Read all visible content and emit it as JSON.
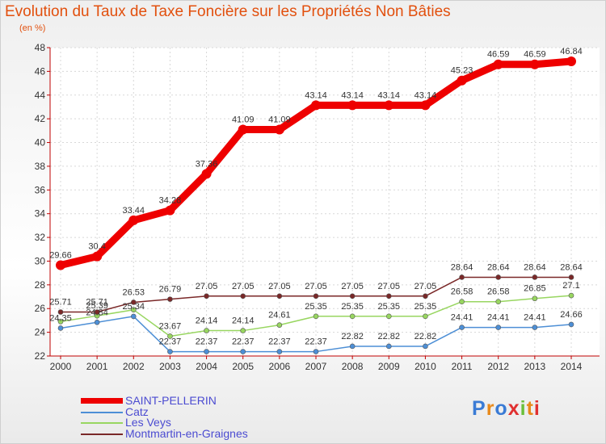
{
  "header": {
    "title": "Evolution du Taux de Taxe Foncière sur les Propriétés Non Bâties",
    "subtitle": "(en %)"
  },
  "brand": {
    "logo_text": "Proxiti"
  },
  "chart_data": {
    "type": "line",
    "x": [
      "2000",
      "2001",
      "2002",
      "2003",
      "2004",
      "2005",
      "2006",
      "2007",
      "2008",
      "2009",
      "2010",
      "2011",
      "2012",
      "2013",
      "2014"
    ],
    "ylim": [
      22,
      48
    ],
    "yticks": [
      22,
      24,
      26,
      28,
      30,
      32,
      34,
      36,
      38,
      40,
      42,
      44,
      46,
      48
    ],
    "grid": true,
    "legend_position": "bottom-left",
    "series": [
      {
        "name": "SAINT-PELLERIN",
        "color": "#ee0000",
        "width": 9,
        "values": [
          29.66,
          30.4,
          33.44,
          34.28,
          37.36,
          41.09,
          41.09,
          43.14,
          43.14,
          43.14,
          43.14,
          45.23,
          46.59,
          46.59,
          46.84
        ],
        "labels": [
          "29.66",
          "30.4",
          "33.44",
          "34.28",
          "37.36",
          "41.09",
          "41.09",
          "43.14",
          "43.14",
          "43.14",
          "43.14",
          "45.23",
          "46.59",
          "46.59",
          "46.84"
        ]
      },
      {
        "name": "Catz",
        "color": "#4d8fd6",
        "width": 1.5,
        "values": [
          24.35,
          24.84,
          25.34,
          22.37,
          22.37,
          22.37,
          22.37,
          22.37,
          22.82,
          22.82,
          22.82,
          24.41,
          24.41,
          24.41,
          24.66
        ],
        "labels": [
          "24.35",
          "24.84",
          "25.34",
          "22.37",
          "22.37",
          "22.37",
          "22.37",
          "22.37",
          "22.82",
          "22.82",
          "22.82",
          "24.41",
          "24.41",
          "24.41",
          "24.66"
        ]
      },
      {
        "name": "Les Veys",
        "color": "#98d660",
        "width": 1.5,
        "values": [
          24.9,
          25.39,
          25.9,
          23.67,
          24.14,
          24.14,
          24.61,
          25.35,
          25.35,
          25.35,
          25.35,
          26.58,
          26.58,
          26.85,
          27.1
        ],
        "labels": [
          "",
          "25.39",
          "",
          "23.67",
          "24.14",
          "24.14",
          "24.61",
          "25.35",
          "25.35",
          "25.35",
          "25.35",
          "26.58",
          "26.58",
          "26.85",
          "27.1"
        ]
      },
      {
        "name": "Montmartin-en-Graignes",
        "color": "#7a2828",
        "width": 1.5,
        "values": [
          25.71,
          25.71,
          26.53,
          26.79,
          27.05,
          27.05,
          27.05,
          27.05,
          27.05,
          27.05,
          27.05,
          28.64,
          28.64,
          28.64,
          28.64
        ],
        "labels": [
          "25.71",
          "25.71",
          "26.53",
          "26.79",
          "27.05",
          "27.05",
          "27.05",
          "27.05",
          "27.05",
          "27.05",
          "27.05",
          "28.64",
          "28.64",
          "28.64",
          "28.64"
        ]
      }
    ]
  }
}
